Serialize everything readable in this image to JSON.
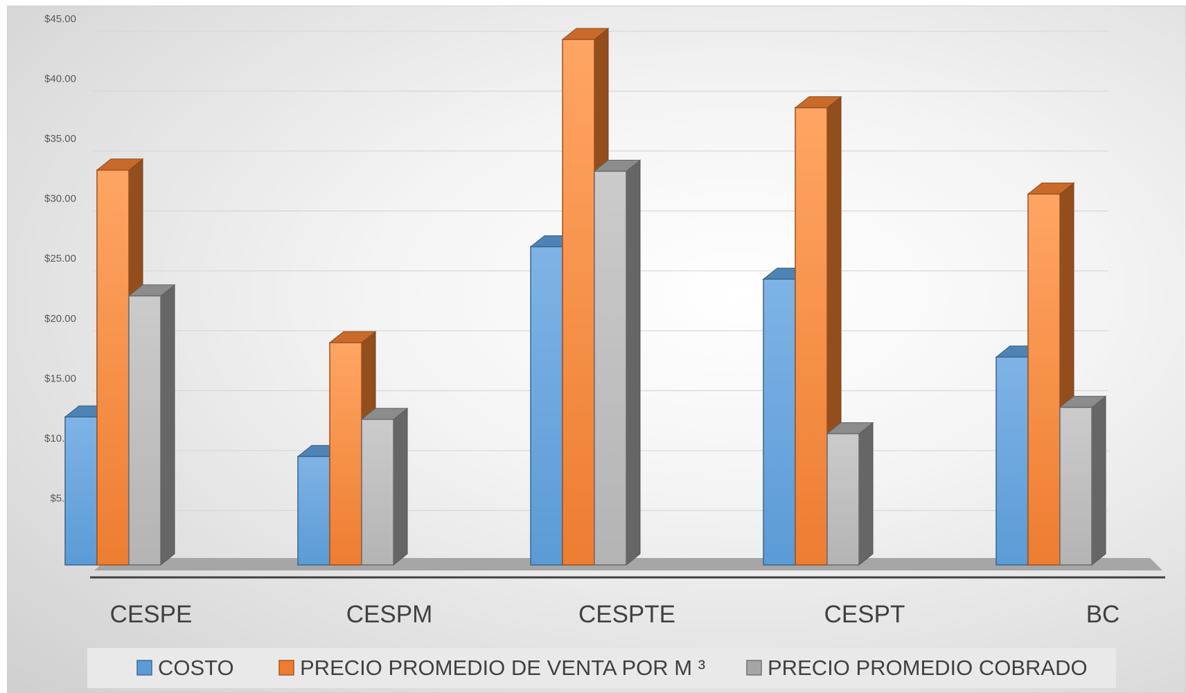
{
  "chart_data": {
    "type": "bar",
    "categories": [
      "CESPE",
      "CESPM",
      "CESPTE",
      "CESPT",
      "BC"
    ],
    "series": [
      {
        "name": "COSTO",
        "values": [
          12.0,
          8.7,
          26.2,
          23.5,
          17.0
        ],
        "color": "#5b9bd5"
      },
      {
        "name": "PRECIO PROMEDIO DE VENTA POR M ³",
        "values": [
          32.6,
          18.2,
          43.5,
          37.8,
          30.6
        ],
        "color": "#ed7d31"
      },
      {
        "name": "PRECIO PROMEDIO COBRADO",
        "values": [
          22.1,
          11.8,
          32.5,
          10.6,
          12.8
        ],
        "color": "#a5a5a5"
      }
    ],
    "y_ticks": [
      "$-",
      "$5.00",
      "$10.00",
      "$15.00",
      "$20.00",
      "$25.00",
      "$30.00",
      "$35.00",
      "$40.00",
      "$45.00"
    ],
    "ylim": [
      0,
      45
    ],
    "grid": true,
    "legend_position": "bottom",
    "style": "3d-clustered-column"
  }
}
